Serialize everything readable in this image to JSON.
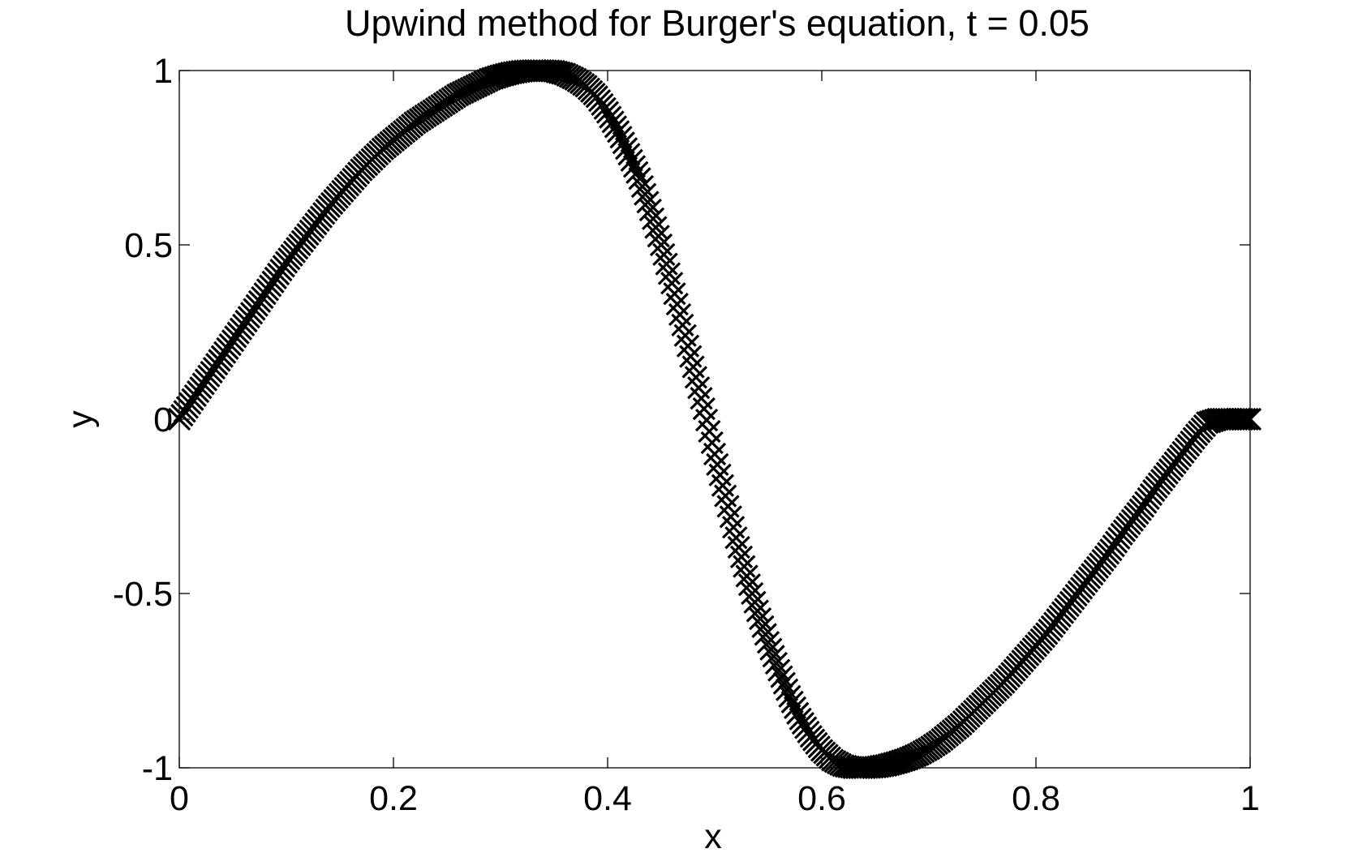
{
  "chart_data": {
    "type": "scatter",
    "title": "Upwind method for Burger's equation, t = 0.05",
    "xlabel": "x",
    "ylabel": "y",
    "xlim": [
      0,
      1
    ],
    "ylim": [
      -1,
      1
    ],
    "xticks": [
      "0",
      "0.2",
      "0.4",
      "0.6",
      "0.8",
      "1"
    ],
    "yticks": [
      "-1",
      "-0.5",
      "0",
      "0.5",
      "1"
    ],
    "grid": false,
    "legend": "none",
    "marker": "x",
    "colors": {
      "marker": "#000000",
      "axes": "#000000",
      "background": "#ffffff"
    },
    "series": [
      {
        "x": [
          0.0,
          0.01,
          0.02,
          0.03,
          0.04,
          0.05,
          0.06,
          0.07,
          0.08,
          0.09,
          0.1,
          0.11,
          0.12,
          0.13,
          0.14,
          0.15,
          0.16,
          0.17,
          0.18,
          0.19,
          0.2,
          0.21,
          0.22,
          0.23,
          0.24,
          0.25,
          0.26,
          0.27,
          0.28,
          0.29,
          0.3,
          0.31,
          0.32,
          0.33,
          0.34,
          0.35,
          0.36,
          0.37,
          0.38,
          0.39,
          0.4,
          0.41,
          0.42,
          0.43,
          0.44,
          0.45,
          0.46,
          0.47,
          0.48,
          0.49,
          0.5,
          0.51,
          0.52,
          0.53,
          0.54,
          0.55,
          0.56,
          0.57,
          0.58,
          0.59,
          0.6,
          0.61,
          0.62,
          0.63,
          0.64,
          0.65,
          0.66,
          0.67,
          0.68,
          0.69,
          0.7,
          0.71,
          0.72,
          0.73,
          0.74,
          0.75,
          0.76,
          0.77,
          0.78,
          0.79,
          0.8,
          0.81,
          0.82,
          0.83,
          0.84,
          0.85,
          0.86,
          0.87,
          0.88,
          0.89,
          0.9,
          0.91,
          0.92,
          0.93,
          0.94,
          0.95,
          0.96,
          0.97,
          0.98,
          0.99,
          1.0
        ],
        "y": [
          0.0,
          0.045,
          0.09,
          0.135,
          0.18,
          0.225,
          0.27,
          0.315,
          0.36,
          0.405,
          0.45,
          0.49,
          0.53,
          0.57,
          0.61,
          0.645,
          0.68,
          0.715,
          0.745,
          0.775,
          0.8,
          0.825,
          0.85,
          0.87,
          0.89,
          0.91,
          0.93,
          0.945,
          0.96,
          0.975,
          0.985,
          0.993,
          0.998,
          1.0,
          1.0,
          0.998,
          0.99,
          0.975,
          0.955,
          0.925,
          0.88,
          0.825,
          0.76,
          0.69,
          0.6,
          0.5,
          0.39,
          0.27,
          0.15,
          0.03,
          -0.1,
          -0.22,
          -0.34,
          -0.45,
          -0.55,
          -0.64,
          -0.72,
          -0.795,
          -0.86,
          -0.91,
          -0.95,
          -0.978,
          -0.994,
          -1.0,
          -1.0,
          -0.998,
          -0.993,
          -0.985,
          -0.975,
          -0.962,
          -0.945,
          -0.925,
          -0.9,
          -0.875,
          -0.845,
          -0.815,
          -0.785,
          -0.755,
          -0.72,
          -0.685,
          -0.65,
          -0.615,
          -0.575,
          -0.535,
          -0.495,
          -0.455,
          -0.415,
          -0.375,
          -0.33,
          -0.29,
          -0.25,
          -0.205,
          -0.165,
          -0.125,
          -0.085,
          -0.045,
          -0.01,
          0.0,
          0.0,
          0.0,
          0.0
        ]
      }
    ]
  }
}
